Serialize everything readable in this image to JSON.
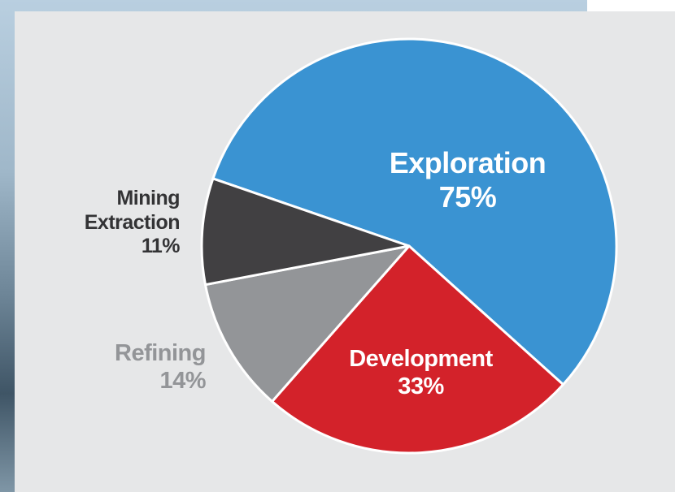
{
  "chart_data": {
    "type": "pie",
    "categories": [
      "Exploration",
      "Development",
      "Refining",
      "Mining Extraction"
    ],
    "values": [
      75,
      33,
      14,
      11
    ],
    "value_labels": [
      "75%",
      "33%",
      "14%",
      "11%"
    ],
    "colors": [
      "#3a93d2",
      "#d3222a",
      "#939598",
      "#414042"
    ]
  }
}
